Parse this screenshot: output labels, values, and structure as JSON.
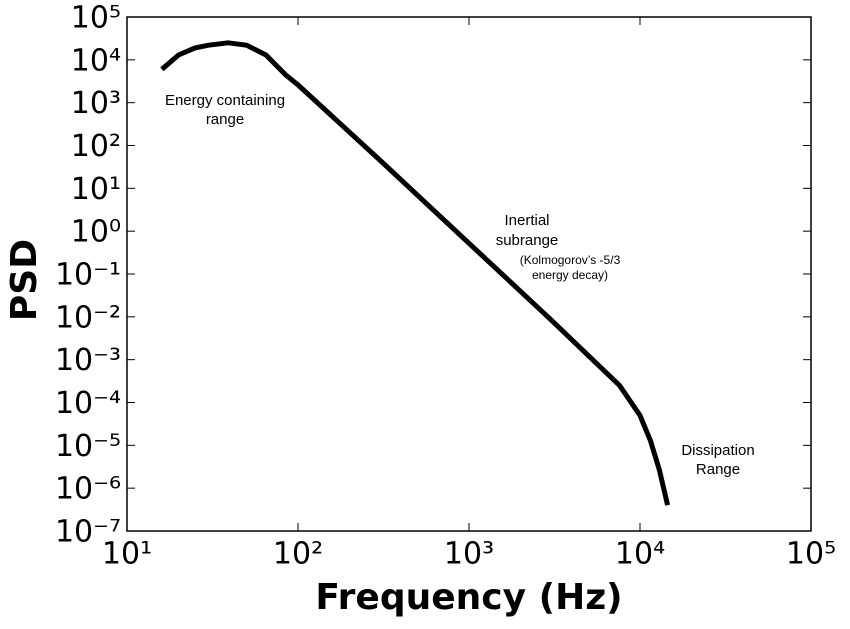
{
  "chart_data": {
    "type": "line",
    "xlabel": "Frequency (Hz)",
    "ylabel": "PSD",
    "xscale": "log",
    "yscale": "log",
    "xlim": [
      10,
      100000
    ],
    "ylim": [
      1e-07,
      100000
    ],
    "xticks": [
      {
        "value": 10,
        "label": "10¹"
      },
      {
        "value": 100,
        "label": "10²"
      },
      {
        "value": 1000,
        "label": "10³"
      },
      {
        "value": 10000,
        "label": "10⁴"
      },
      {
        "value": 100000,
        "label": "10⁵"
      }
    ],
    "yticks": [
      {
        "value": 1e-07,
        "label": "10⁻⁷"
      },
      {
        "value": 1e-06,
        "label": "10⁻⁶"
      },
      {
        "value": 1e-05,
        "label": "10⁻⁵"
      },
      {
        "value": 0.0001,
        "label": "10⁻⁴"
      },
      {
        "value": 0.001,
        "label": "10⁻³"
      },
      {
        "value": 0.01,
        "label": "10⁻²"
      },
      {
        "value": 0.1,
        "label": "10⁻¹"
      },
      {
        "value": 1,
        "label": "10⁰"
      },
      {
        "value": 10,
        "label": "10¹"
      },
      {
        "value": 100,
        "label": "10²"
      },
      {
        "value": 1000,
        "label": "10³"
      },
      {
        "value": 10000,
        "label": "10⁴"
      },
      {
        "value": 100000,
        "label": "10⁵"
      }
    ],
    "x": [
      16,
      20,
      25,
      30,
      39,
      50,
      65,
      85,
      100,
      300,
      1000,
      3000,
      7600,
      10000,
      11500,
      13000,
      14500
    ],
    "values": [
      6000,
      13000,
      19000,
      22000,
      25000,
      22000,
      13000,
      4400,
      2600,
      46,
      0.52,
      0.0087,
      0.00025,
      5e-05,
      1.3e-05,
      2.6e-06,
      4e-07
    ],
    "color": "#000000",
    "annotations": [
      {
        "lines": [
          "Energy containing",
          "range"
        ]
      },
      {
        "lines": [
          "Inertial",
          "subrange"
        ]
      },
      {
        "lines": [
          "(Kolmogorov’s -5/3",
          "energy decay)"
        ]
      },
      {
        "lines": [
          "Dissipation",
          "Range"
        ]
      }
    ]
  }
}
